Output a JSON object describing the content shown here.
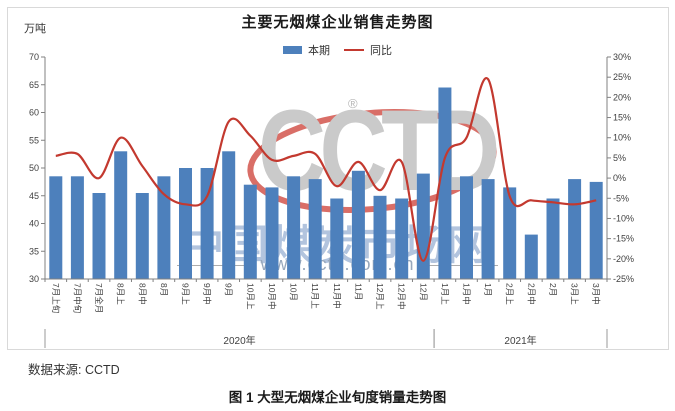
{
  "figure": {
    "title": "主要无烟煤企业销售走势图",
    "unit_label": "万吨"
  },
  "chart_data": {
    "type": "combo",
    "categories": [
      "7月上旬",
      "7月中旬",
      "7月全月",
      "8月上",
      "8月中",
      "8月",
      "9月上",
      "9月中",
      "9月",
      "10月上",
      "10月中",
      "10月",
      "11月上",
      "11月中",
      "11月",
      "12月上",
      "12月中",
      "12月",
      "1月上",
      "1月中",
      "1月",
      "2月上",
      "2月中",
      "2月",
      "3月上",
      "3月中"
    ],
    "series": [
      {
        "name": "本期",
        "type": "bar",
        "axis": "left",
        "unit": "万吨",
        "color": "#4D80BC",
        "values": [
          48.5,
          48.5,
          45.5,
          53,
          45.5,
          48.5,
          50,
          50,
          53,
          47,
          46.5,
          48.5,
          48,
          44.5,
          49.5,
          45,
          44.5,
          49,
          64.5,
          48.5,
          48,
          46.5,
          38,
          44.5,
          48,
          47.5
        ]
      },
      {
        "name": "同比",
        "type": "line",
        "axis": "right",
        "unit": "%",
        "color": "#C3392F",
        "values": [
          5.5,
          6,
          0,
          10,
          3,
          -4,
          -6.5,
          -4.5,
          14,
          10.5,
          4.5,
          5.5,
          6,
          -2,
          4,
          -3,
          4,
          -20.5,
          5,
          10,
          24.5,
          -4.5,
          -5.5,
          -6,
          -6.5,
          -5.5
        ]
      }
    ],
    "left_axis": {
      "min": 30,
      "max": 70,
      "step": 5,
      "title": "万吨"
    },
    "right_axis": {
      "min": -25,
      "max": 30,
      "step": 5,
      "suffix": "%"
    },
    "year_bands": [
      {
        "label": "2020年",
        "from": 0,
        "to": 17
      },
      {
        "label": "2021年",
        "from": 18,
        "to": 25
      }
    ],
    "grid": false,
    "legend_position": "top"
  },
  "watermark": {
    "logo": "CCTD",
    "registered": "®",
    "site_name": "中国煤炭市场网",
    "site_url": "www.cctd.com.cn"
  },
  "footer": {
    "source": "数据来源: CCTD",
    "caption": "图 1 大型无烟煤企业旬度销量走势图"
  }
}
